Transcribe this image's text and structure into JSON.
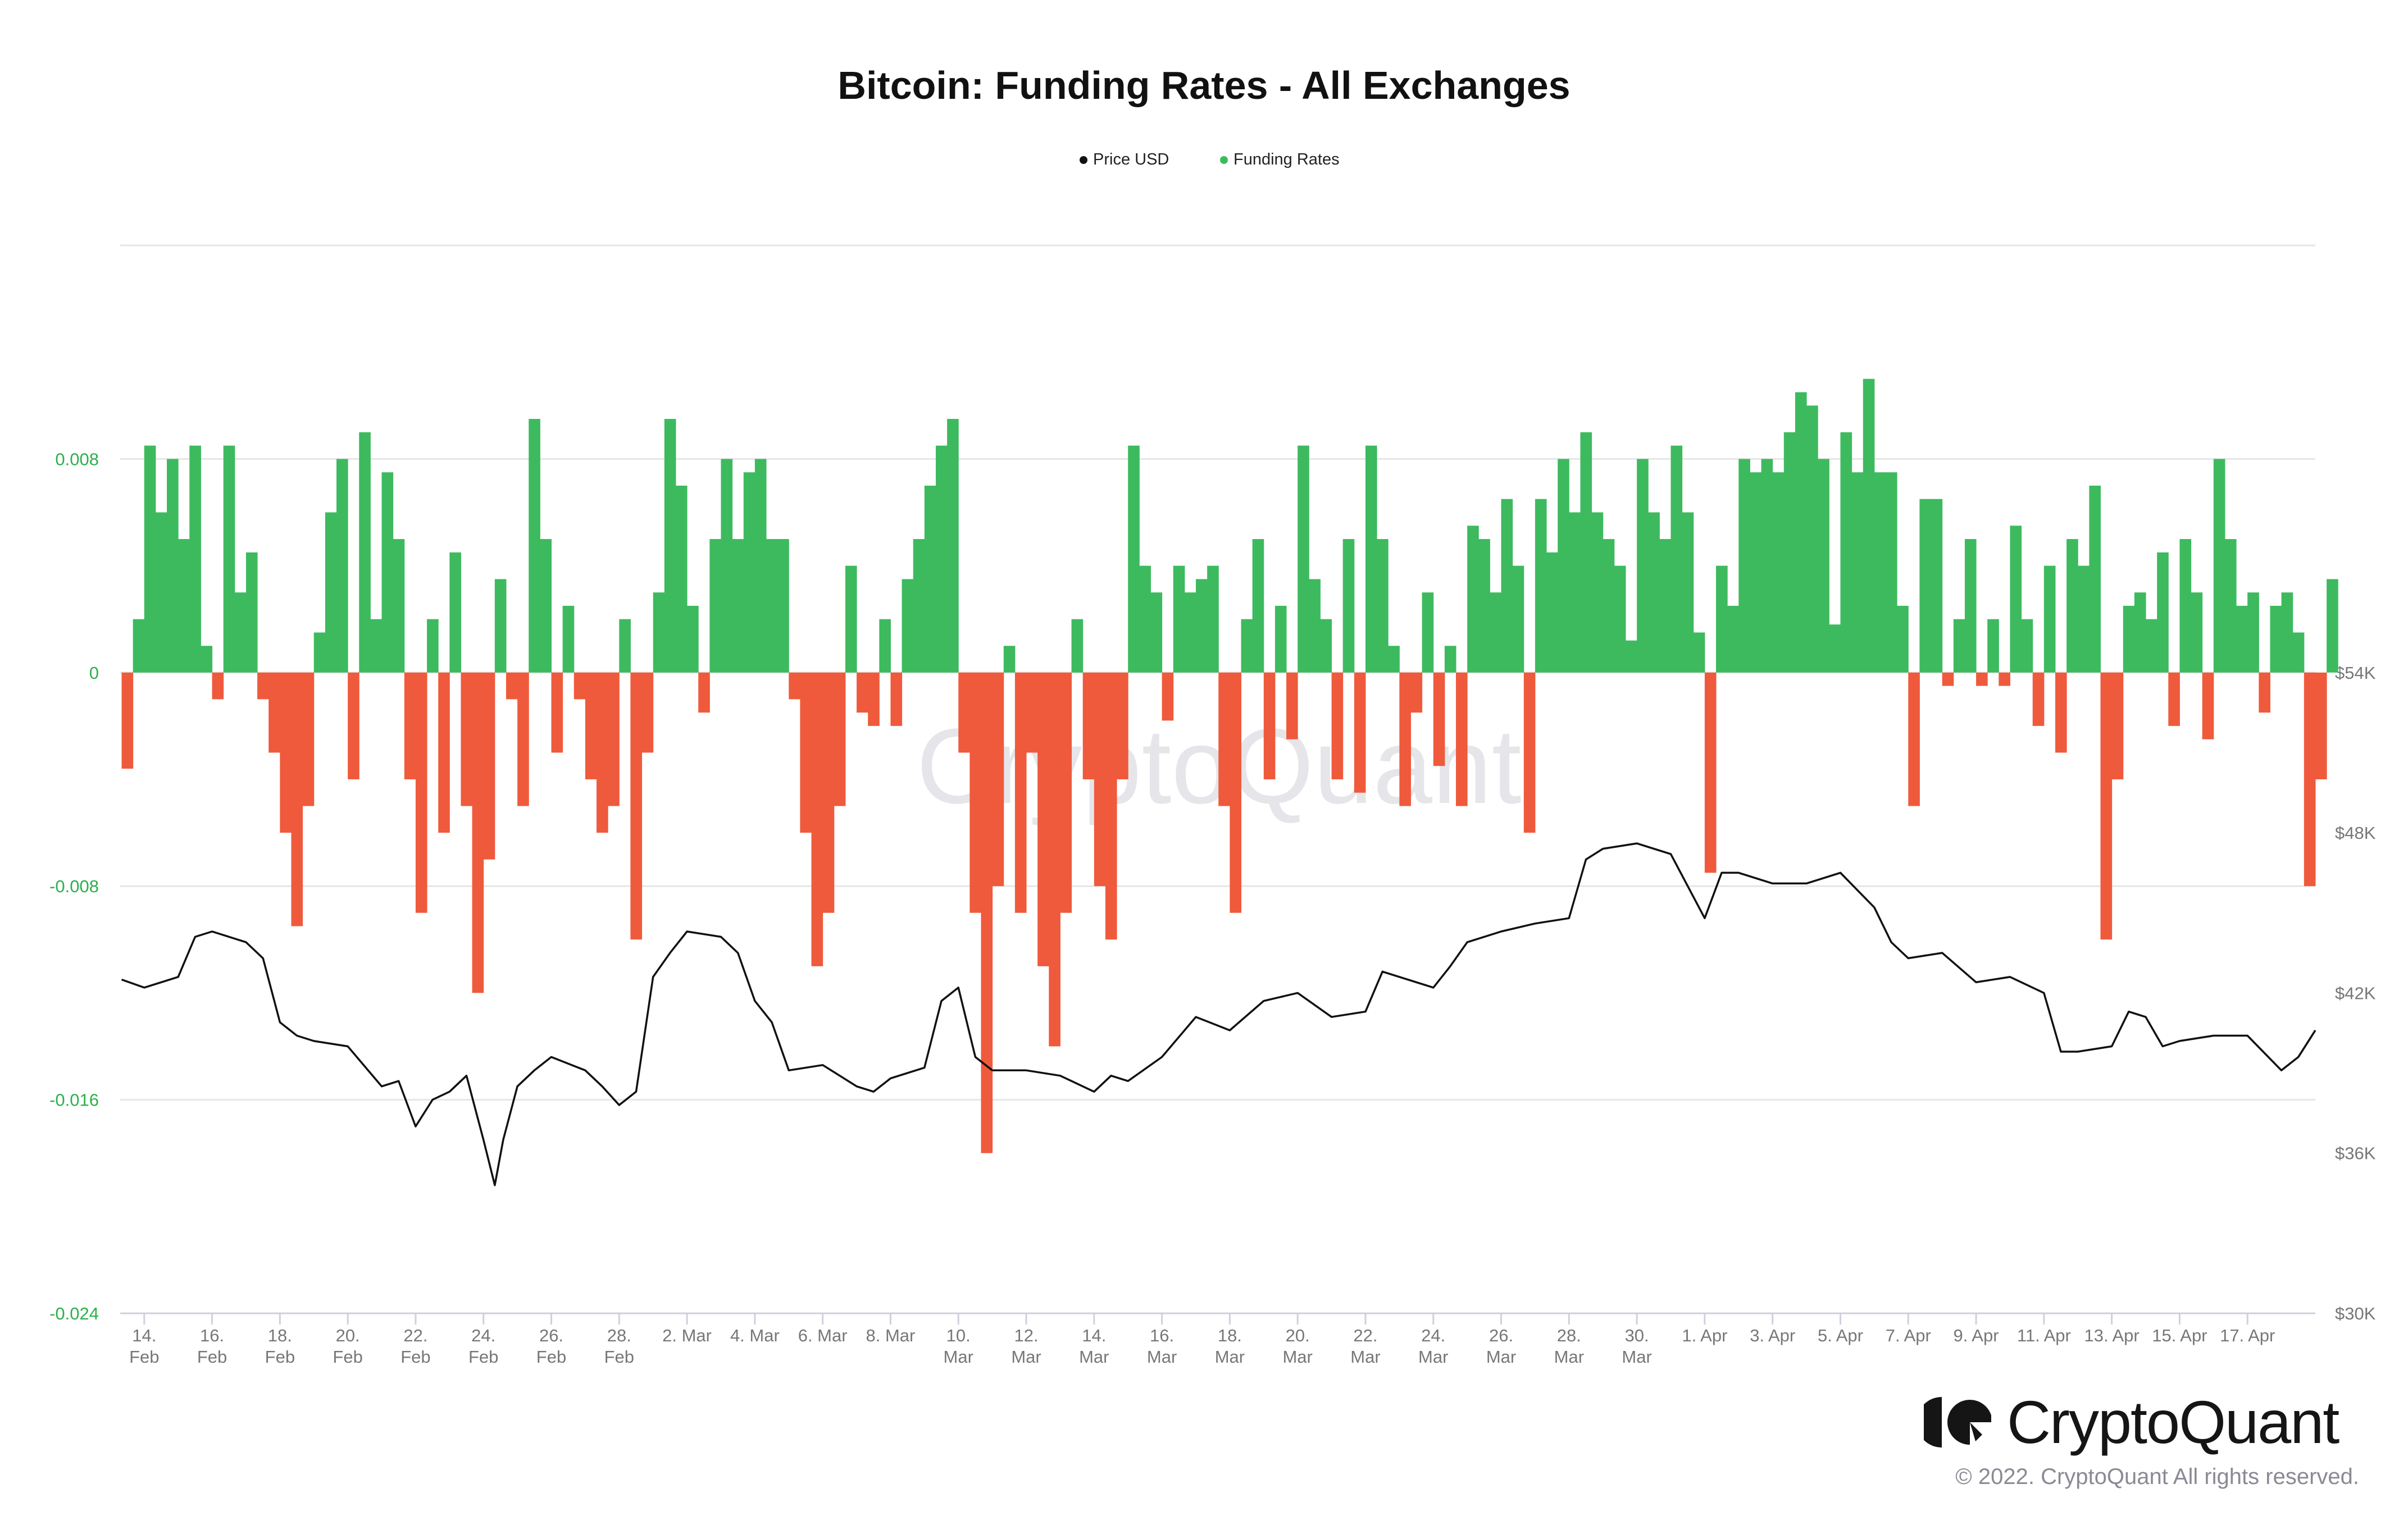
{
  "chart_data": {
    "type": "bar+line",
    "title": "Bitcoin: Funding Rates - All Exchanges",
    "legend": [
      {
        "name": "Price USD",
        "color": "#111111"
      },
      {
        "name": "Funding Rates",
        "color": "#3dba5e"
      }
    ],
    "legend_placement": "top-center",
    "watermark": "CryptoQuant",
    "x_range": [
      "2022-02-13T07:00",
      "2022-04-19T00:00"
    ],
    "left_axis": {
      "ylim": [
        -0.024,
        0.016
      ],
      "ticks": [
        0.008,
        0,
        -0.008,
        -0.016,
        -0.024
      ],
      "tick_labels": [
        "0.008",
        "0",
        "-0.008",
        "-0.016",
        "-0.024"
      ],
      "color": "#2bb04a"
    },
    "right_axis": {
      "ylim": [
        30000,
        70000
      ],
      "ticks": [
        54000,
        48000,
        42000,
        36000,
        30000
      ],
      "tick_labels": [
        "$54K",
        "$48K",
        "$42K",
        "$36K",
        "$30K"
      ],
      "color": "#777777"
    },
    "grid": true,
    "x_ticks": [
      {
        "date": "2022-02-14",
        "label": [
          "14.",
          "Feb"
        ]
      },
      {
        "date": "2022-02-16",
        "label": [
          "16.",
          "Feb"
        ]
      },
      {
        "date": "2022-02-18",
        "label": [
          "18.",
          "Feb"
        ]
      },
      {
        "date": "2022-02-20",
        "label": [
          "20.",
          "Feb"
        ]
      },
      {
        "date": "2022-02-22",
        "label": [
          "22.",
          "Feb"
        ]
      },
      {
        "date": "2022-02-24",
        "label": [
          "24.",
          "Feb"
        ]
      },
      {
        "date": "2022-02-26",
        "label": [
          "26.",
          "Feb"
        ]
      },
      {
        "date": "2022-02-28",
        "label": [
          "28.",
          "Feb"
        ]
      },
      {
        "date": "2022-03-02",
        "label": [
          "2. Mar"
        ]
      },
      {
        "date": "2022-03-04",
        "label": [
          "4. Mar"
        ]
      },
      {
        "date": "2022-03-06",
        "label": [
          "6. Mar"
        ]
      },
      {
        "date": "2022-03-08",
        "label": [
          "8. Mar"
        ]
      },
      {
        "date": "2022-03-10",
        "label": [
          "10.",
          "Mar"
        ]
      },
      {
        "date": "2022-03-12",
        "label": [
          "12.",
          "Mar"
        ]
      },
      {
        "date": "2022-03-14",
        "label": [
          "14.",
          "Mar"
        ]
      },
      {
        "date": "2022-03-16",
        "label": [
          "16.",
          "Mar"
        ]
      },
      {
        "date": "2022-03-18",
        "label": [
          "18.",
          "Mar"
        ]
      },
      {
        "date": "2022-03-20",
        "label": [
          "20.",
          "Mar"
        ]
      },
      {
        "date": "2022-03-22",
        "label": [
          "22.",
          "Mar"
        ]
      },
      {
        "date": "2022-03-24",
        "label": [
          "24.",
          "Mar"
        ]
      },
      {
        "date": "2022-03-26",
        "label": [
          "26.",
          "Mar"
        ]
      },
      {
        "date": "2022-03-28",
        "label": [
          "28.",
          "Mar"
        ]
      },
      {
        "date": "2022-03-30",
        "label": [
          "30.",
          "Mar"
        ]
      },
      {
        "date": "2022-04-01",
        "label": [
          "1. Apr"
        ]
      },
      {
        "date": "2022-04-03",
        "label": [
          "3. Apr"
        ]
      },
      {
        "date": "2022-04-05",
        "label": [
          "5. Apr"
        ]
      },
      {
        "date": "2022-04-07",
        "label": [
          "7. Apr"
        ]
      },
      {
        "date": "2022-04-09",
        "label": [
          "9. Apr"
        ]
      },
      {
        "date": "2022-04-11",
        "label": [
          "11. Apr"
        ]
      },
      {
        "date": "2022-04-13",
        "label": [
          "13. Apr"
        ]
      },
      {
        "date": "2022-04-15",
        "label": [
          "15. Apr"
        ]
      },
      {
        "date": "2022-04-17",
        "label": [
          "17. Apr"
        ]
      }
    ],
    "funding_rates": {
      "start": "2022-02-13T08:00",
      "interval_hours": 8,
      "positive_color": "#3dba5e",
      "negative_color": "#ef5a3c",
      "values": [
        -0.0036,
        0.002,
        0.0085,
        0.006,
        0.008,
        0.005,
        0.0085,
        0.001,
        -0.001,
        0.0085,
        0.003,
        0.0045,
        -0.001,
        -0.003,
        -0.006,
        -0.0095,
        -0.005,
        0.0015,
        0.006,
        0.008,
        -0.004,
        0.009,
        0.002,
        0.0075,
        0.005,
        -0.004,
        -0.009,
        0.002,
        -0.006,
        0.0045,
        -0.005,
        -0.012,
        -0.007,
        0.0035,
        -0.001,
        -0.005,
        0.0095,
        0.005,
        -0.003,
        0.0025,
        -0.001,
        -0.004,
        -0.006,
        -0.005,
        0.002,
        -0.01,
        -0.003,
        0.003,
        0.0095,
        0.007,
        0.0025,
        -0.0015,
        0.005,
        0.008,
        0.005,
        0.0075,
        0.008,
        0.005,
        0.005,
        -0.001,
        -0.006,
        -0.011,
        -0.009,
        -0.005,
        0.004,
        -0.0015,
        -0.002,
        0.002,
        -0.002,
        0.0035,
        0.005,
        0.007,
        0.0085,
        0.0095,
        -0.003,
        -0.009,
        -0.018,
        -0.008,
        0.001,
        -0.009,
        -0.003,
        -0.011,
        -0.014,
        -0.009,
        0.002,
        -0.004,
        -0.008,
        -0.01,
        -0.004,
        0.0085,
        0.004,
        0.003,
        -0.0018,
        0.004,
        0.003,
        0.0035,
        0.004,
        -0.005,
        -0.009,
        0.002,
        0.005,
        -0.004,
        0.0025,
        -0.0025,
        0.0085,
        0.0035,
        0.002,
        -0.004,
        0.005,
        -0.0045,
        0.0085,
        0.005,
        0.001,
        -0.005,
        -0.0015,
        0.003,
        -0.0035,
        0.001,
        -0.005,
        0.0055,
        0.005,
        0.003,
        0.0065,
        0.004,
        -0.006,
        0.0065,
        0.0045,
        0.008,
        0.006,
        0.009,
        0.006,
        0.005,
        0.004,
        0.0012,
        0.008,
        0.006,
        0.005,
        0.0085,
        0.006,
        0.0015,
        -0.0075,
        0.004,
        0.0025,
        0.008,
        0.0075,
        0.008,
        0.0075,
        0.009,
        0.0105,
        0.01,
        0.008,
        0.0018,
        0.009,
        0.0075,
        0.011,
        0.0075,
        0.0075,
        0.0025,
        -0.005,
        0.0065,
        0.0065,
        -0.0005,
        0.002,
        0.005,
        -0.0005,
        0.002,
        -0.0005,
        0.0055,
        0.002,
        -0.002,
        0.004,
        -0.003,
        0.005,
        0.004,
        0.007,
        -0.01,
        -0.004,
        0.0025,
        0.003,
        0.002,
        0.0045,
        -0.002,
        0.005,
        0.003,
        -0.0025,
        0.008,
        0.005,
        0.0025,
        0.003,
        -0.0015,
        0.0025,
        0.003,
        0.0015,
        -0.008,
        -0.004,
        0.0035
      ]
    },
    "price_usd": [
      [
        "2022-02-13T08:00",
        42500
      ],
      [
        "2022-02-14T00:00",
        42200
      ],
      [
        "2022-02-15T00:00",
        42600
      ],
      [
        "2022-02-15T12:00",
        44100
      ],
      [
        "2022-02-16T00:00",
        44300
      ],
      [
        "2022-02-17T00:00",
        43900
      ],
      [
        "2022-02-17T12:00",
        43300
      ],
      [
        "2022-02-18T00:00",
        40900
      ],
      [
        "2022-02-18T12:00",
        40400
      ],
      [
        "2022-02-19T00:00",
        40200
      ],
      [
        "2022-02-20T00:00",
        40000
      ],
      [
        "2022-02-21T00:00",
        38500
      ],
      [
        "2022-02-21T12:00",
        38700
      ],
      [
        "2022-02-22T00:00",
        37000
      ],
      [
        "2022-02-22T12:00",
        38000
      ],
      [
        "2022-02-23T00:00",
        38300
      ],
      [
        "2022-02-23T12:00",
        38900
      ],
      [
        "2022-02-24T00:00",
        36500
      ],
      [
        "2022-02-24T08:00",
        34800
      ],
      [
        "2022-02-24T14:00",
        36500
      ],
      [
        "2022-02-25T00:00",
        38500
      ],
      [
        "2022-02-25T12:00",
        39100
      ],
      [
        "2022-02-26T00:00",
        39600
      ],
      [
        "2022-02-27T00:00",
        39100
      ],
      [
        "2022-02-27T12:00",
        38500
      ],
      [
        "2022-02-28T00:00",
        37800
      ],
      [
        "2022-02-28T12:00",
        38300
      ],
      [
        "2022-03-01T00:00",
        42600
      ],
      [
        "2022-03-01T12:00",
        43500
      ],
      [
        "2022-03-02T00:00",
        44300
      ],
      [
        "2022-03-03T00:00",
        44100
      ],
      [
        "2022-03-03T12:00",
        43500
      ],
      [
        "2022-03-04T00:00",
        41700
      ],
      [
        "2022-03-04T12:00",
        40900
      ],
      [
        "2022-03-05T00:00",
        39100
      ],
      [
        "2022-03-06T00:00",
        39300
      ],
      [
        "2022-03-07T00:00",
        38500
      ],
      [
        "2022-03-07T12:00",
        38300
      ],
      [
        "2022-03-08T00:00",
        38800
      ],
      [
        "2022-03-09T00:00",
        39200
      ],
      [
        "2022-03-09T12:00",
        41700
      ],
      [
        "2022-03-10T00:00",
        42200
      ],
      [
        "2022-03-10T12:00",
        39600
      ],
      [
        "2022-03-11T00:00",
        39100
      ],
      [
        "2022-03-12T00:00",
        39100
      ],
      [
        "2022-03-13T00:00",
        38900
      ],
      [
        "2022-03-14T00:00",
        38300
      ],
      [
        "2022-03-14T12:00",
        38900
      ],
      [
        "2022-03-15T00:00",
        38700
      ],
      [
        "2022-03-16T00:00",
        39600
      ],
      [
        "2022-03-17T00:00",
        41100
      ],
      [
        "2022-03-18T00:00",
        40600
      ],
      [
        "2022-03-19T00:00",
        41700
      ],
      [
        "2022-03-20T00:00",
        42000
      ],
      [
        "2022-03-21T00:00",
        41100
      ],
      [
        "2022-03-22T00:00",
        41300
      ],
      [
        "2022-03-22T12:00",
        42800
      ],
      [
        "2022-03-23T00:00",
        42600
      ],
      [
        "2022-03-24T00:00",
        42200
      ],
      [
        "2022-03-24T12:00",
        43000
      ],
      [
        "2022-03-25T00:00",
        43900
      ],
      [
        "2022-03-26T00:00",
        44300
      ],
      [
        "2022-03-27T00:00",
        44600
      ],
      [
        "2022-03-28T00:00",
        44800
      ],
      [
        "2022-03-28T12:00",
        47000
      ],
      [
        "2022-03-29T00:00",
        47400
      ],
      [
        "2022-03-30T00:00",
        47600
      ],
      [
        "2022-03-31T00:00",
        47200
      ],
      [
        "2022-04-01T00:00",
        44800
      ],
      [
        "2022-04-01T12:00",
        46500
      ],
      [
        "2022-04-02T00:00",
        46500
      ],
      [
        "2022-04-03T00:00",
        46100
      ],
      [
        "2022-04-04T00:00",
        46100
      ],
      [
        "2022-04-05T00:00",
        46500
      ],
      [
        "2022-04-06T00:00",
        45200
      ],
      [
        "2022-04-06T12:00",
        43900
      ],
      [
        "2022-04-07T00:00",
        43300
      ],
      [
        "2022-04-08T00:00",
        43500
      ],
      [
        "2022-04-09T00:00",
        42400
      ],
      [
        "2022-04-10T00:00",
        42600
      ],
      [
        "2022-04-11T00:00",
        42000
      ],
      [
        "2022-04-11T12:00",
        39800
      ],
      [
        "2022-04-12T00:00",
        39800
      ],
      [
        "2022-04-13T00:00",
        40000
      ],
      [
        "2022-04-13T12:00",
        41300
      ],
      [
        "2022-04-14T00:00",
        41100
      ],
      [
        "2022-04-14T12:00",
        40000
      ],
      [
        "2022-04-15T00:00",
        40200
      ],
      [
        "2022-04-16T00:00",
        40400
      ],
      [
        "2022-04-17T00:00",
        40400
      ],
      [
        "2022-04-18T00:00",
        39100
      ],
      [
        "2022-04-18T12:00",
        39600
      ],
      [
        "2022-04-19T00:00",
        40600
      ]
    ]
  },
  "branding": {
    "logo_text": "CryptoQuant",
    "copyright": "© 2022. CryptoQuant All rights reserved."
  }
}
